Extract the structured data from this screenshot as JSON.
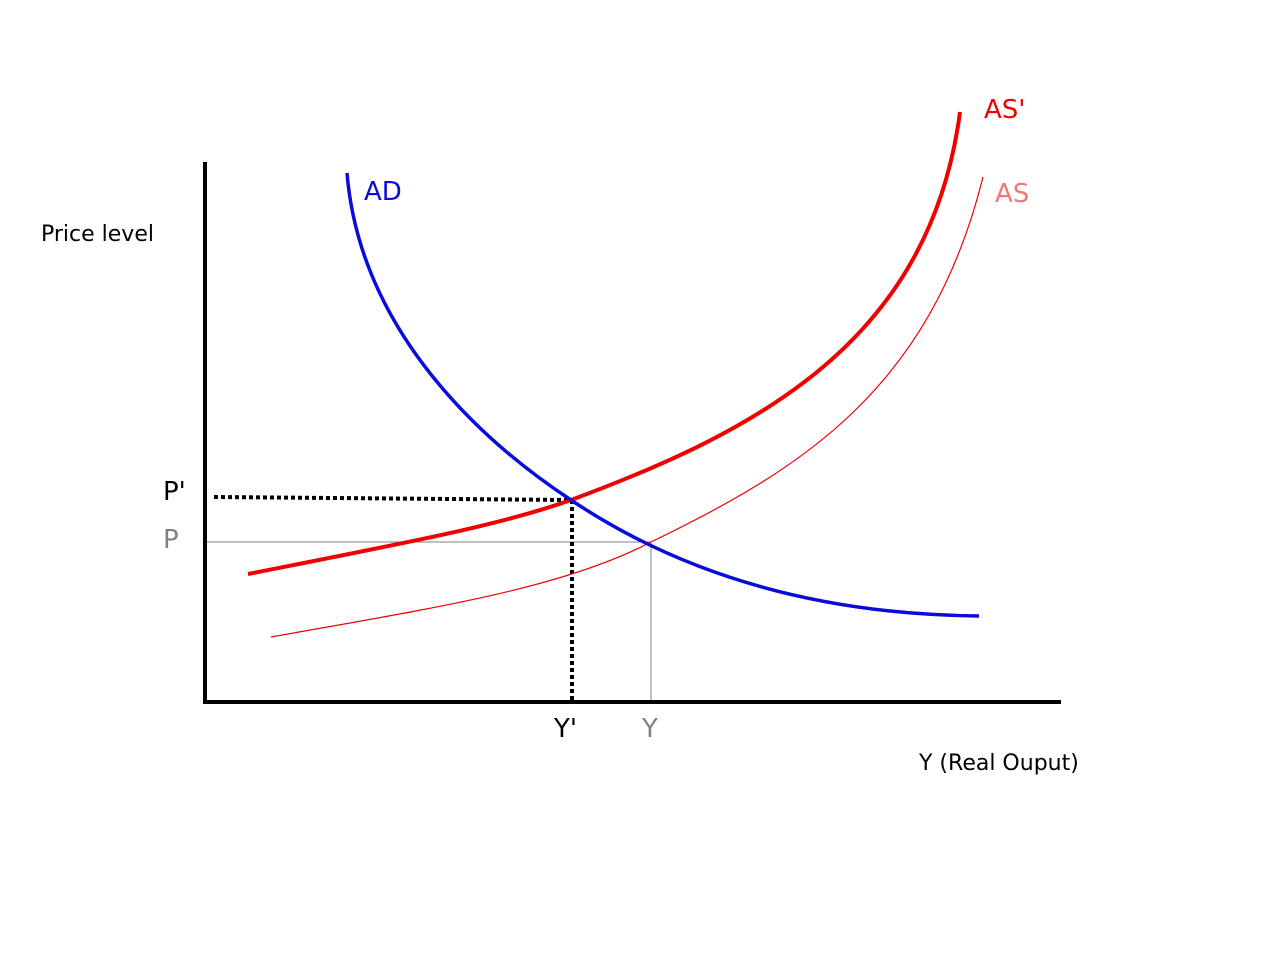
{
  "diagram": {
    "y_axis_label": "Price level",
    "x_axis_label": "Y (Real Ouput)",
    "curves": {
      "ad": {
        "label": "AD",
        "color": "#0a0adc"
      },
      "as": {
        "label": "AS",
        "color": "#f07878"
      },
      "as_shifted": {
        "label": "AS'",
        "color": "#f00000"
      }
    },
    "equilibrium": {
      "original": {
        "price_label": "P",
        "output_label": "Y",
        "color": "#808080"
      },
      "new": {
        "price_label": "P'",
        "output_label": "Y'",
        "color": "#000000"
      }
    },
    "axis_color": "#000000"
  }
}
